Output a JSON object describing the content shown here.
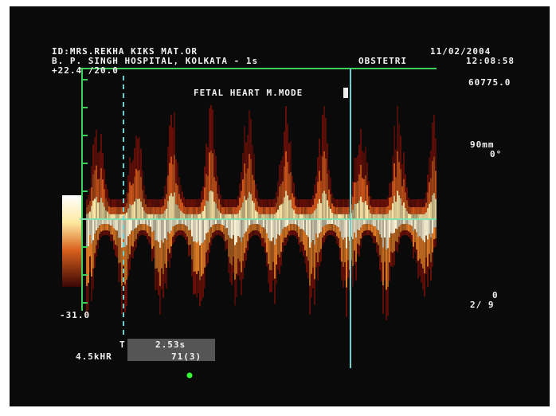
{
  "header": {
    "patient": "ID:MRS.REKHA KIKS MAT.OR",
    "hospital": "B. P. SINGH HOSPITAL, KOLKATA - 1s",
    "date": "11/02/2004",
    "department": "OBSTETRI",
    "time": "12:08:58",
    "scale": "+22.4 /20.0"
  },
  "screen": {
    "mode": "FETAL HEART M.MODE",
    "frequency": "60775.0",
    "depth": "90mm",
    "angle": "0°",
    "gain": "0",
    "frame": "2/ 9",
    "min_scale": "-31.0"
  },
  "measurements": {
    "time_label": "T",
    "time_value": "2.53s",
    "hr_label": "4.5kHR",
    "hr_value": "71(3)"
  }
}
